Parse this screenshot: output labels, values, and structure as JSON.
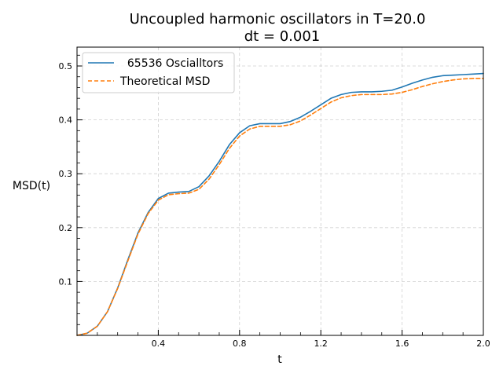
{
  "chart_data": {
    "type": "line",
    "title": "Uncoupled harmonic oscillators in T=20.0",
    "subtitle": "dt = 0.001",
    "xlabel": "t",
    "ylabel": "MSD(t)",
    "xlim": [
      0.0,
      2.0
    ],
    "ylim": [
      0.0,
      0.535
    ],
    "xticks": [
      0.4,
      0.8,
      1.2,
      1.6,
      2.0
    ],
    "xtick_labels": [
      "0.4",
      "0.8",
      "1.2",
      "1.6",
      "2.0"
    ],
    "yticks": [
      0.1,
      0.2,
      0.3,
      0.4,
      0.5
    ],
    "ytick_labels": [
      "0.1",
      "0.2",
      "0.3",
      "0.4",
      "0.5"
    ],
    "grid": true,
    "legend_position": "top-left",
    "x": [
      0.0,
      0.05,
      0.1,
      0.15,
      0.2,
      0.25,
      0.3,
      0.35,
      0.4,
      0.45,
      0.5,
      0.55,
      0.6,
      0.65,
      0.7,
      0.75,
      0.8,
      0.85,
      0.9,
      0.95,
      1.0,
      1.05,
      1.1,
      1.15,
      1.2,
      1.25,
      1.3,
      1.35,
      1.4,
      1.45,
      1.5,
      1.55,
      1.6,
      1.65,
      1.7,
      1.75,
      1.8,
      1.85,
      1.9,
      1.95,
      2.0
    ],
    "series": [
      {
        "name": "  65536 Oscialltors",
        "color": "#1f77b4",
        "style": "solid",
        "values": [
          0.0,
          0.004,
          0.017,
          0.044,
          0.088,
          0.14,
          0.19,
          0.228,
          0.254,
          0.264,
          0.266,
          0.267,
          0.276,
          0.296,
          0.323,
          0.354,
          0.376,
          0.389,
          0.393,
          0.393,
          0.393,
          0.397,
          0.405,
          0.416,
          0.428,
          0.44,
          0.447,
          0.451,
          0.452,
          0.452,
          0.453,
          0.455,
          0.461,
          0.468,
          0.474,
          0.479,
          0.482,
          0.483,
          0.484,
          0.485,
          0.486
        ]
      },
      {
        "name": "Theoretical MSD",
        "color": "#ff7f0e",
        "style": "dashed",
        "values": [
          0.0,
          0.004,
          0.017,
          0.044,
          0.087,
          0.138,
          0.188,
          0.226,
          0.251,
          0.261,
          0.263,
          0.264,
          0.271,
          0.29,
          0.317,
          0.347,
          0.37,
          0.383,
          0.388,
          0.388,
          0.388,
          0.391,
          0.398,
          0.409,
          0.421,
          0.433,
          0.441,
          0.445,
          0.447,
          0.447,
          0.447,
          0.448,
          0.451,
          0.456,
          0.462,
          0.467,
          0.471,
          0.474,
          0.476,
          0.477,
          0.477
        ]
      }
    ]
  }
}
